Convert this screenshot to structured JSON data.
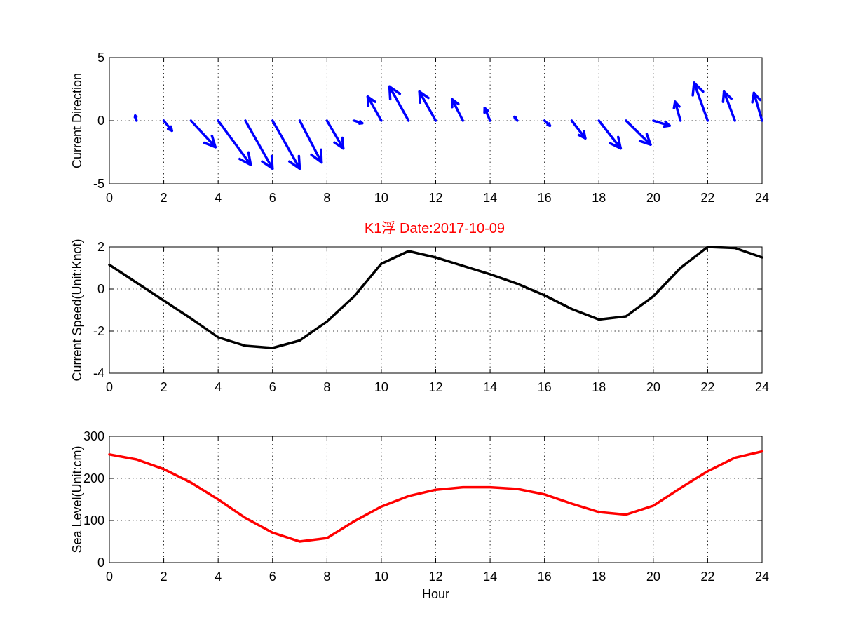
{
  "figure": {
    "title": "K1浮    Date:2017-10-09"
  },
  "chart_data": [
    {
      "type": "quiver",
      "id": "direction",
      "ylabel": "Current Direction",
      "xlabel": "",
      "xlim": [
        0,
        24
      ],
      "ylim": [
        -5,
        5
      ],
      "xticks": [
        0,
        2,
        4,
        6,
        8,
        10,
        12,
        14,
        16,
        18,
        20,
        22,
        24
      ],
      "yticks": [
        -5,
        0,
        5
      ],
      "grid": true,
      "color": "#0000ff",
      "x": [
        1,
        2,
        3,
        4,
        5,
        6,
        7,
        8,
        9,
        10,
        11,
        12,
        13,
        14,
        15,
        16,
        17,
        18,
        19,
        20,
        21,
        22,
        23,
        24
      ],
      "u": [
        -0.05,
        0.3,
        0.9,
        1.2,
        1.0,
        1.0,
        0.8,
        0.6,
        0.3,
        -0.5,
        -0.7,
        -0.6,
        -0.4,
        -0.2,
        -0.1,
        0.2,
        0.5,
        0.8,
        0.9,
        0.6,
        -0.2,
        -0.5,
        -0.4,
        -0.3
      ],
      "v": [
        0.4,
        -0.8,
        -2.1,
        -3.5,
        -3.8,
        -3.8,
        -3.3,
        -2.2,
        -0.2,
        1.9,
        2.7,
        2.3,
        1.7,
        1.0,
        0.3,
        -0.4,
        -1.4,
        -2.2,
        -1.9,
        -0.4,
        1.5,
        3.0,
        2.3,
        2.2
      ]
    },
    {
      "type": "line",
      "id": "speed",
      "ylabel": "Current Speed(Unit:Knot)",
      "xlabel": "",
      "xlim": [
        0,
        24
      ],
      "ylim": [
        -4,
        2
      ],
      "xticks": [
        0,
        2,
        4,
        6,
        8,
        10,
        12,
        14,
        16,
        18,
        20,
        22,
        24
      ],
      "yticks": [
        -4,
        -2,
        0,
        2
      ],
      "grid": true,
      "series": [
        {
          "color": "#000000",
          "x": [
            0,
            1,
            2,
            3,
            4,
            5,
            6,
            7,
            8,
            9,
            10,
            11,
            12,
            13,
            14,
            15,
            16,
            17,
            18,
            19,
            20,
            21,
            22,
            23,
            24
          ],
          "values": [
            1.15,
            0.3,
            -0.55,
            -1.4,
            -2.3,
            -2.7,
            -2.8,
            -2.45,
            -1.55,
            -0.35,
            1.2,
            1.8,
            1.5,
            1.1,
            0.7,
            0.25,
            -0.3,
            -0.95,
            -1.45,
            -1.3,
            -0.35,
            1.0,
            2.0,
            1.95,
            1.5
          ]
        }
      ]
    },
    {
      "type": "line",
      "id": "sealevel",
      "ylabel": "Sea Level(Unit:cm)",
      "xlabel": "Hour",
      "xlim": [
        0,
        24
      ],
      "ylim": [
        0,
        300
      ],
      "xticks": [
        0,
        2,
        4,
        6,
        8,
        10,
        12,
        14,
        16,
        18,
        20,
        22,
        24
      ],
      "yticks": [
        0,
        100,
        200,
        300
      ],
      "grid": true,
      "series": [
        {
          "color": "#ff0000",
          "x": [
            0,
            1,
            2,
            3,
            4,
            5,
            6,
            7,
            8,
            9,
            10,
            11,
            12,
            13,
            14,
            15,
            16,
            17,
            18,
            19,
            20,
            21,
            22,
            23,
            24
          ],
          "values": [
            257,
            245,
            222,
            190,
            150,
            106,
            71,
            50,
            58,
            98,
            133,
            158,
            173,
            179,
            179,
            175,
            162,
            140,
            120,
            114,
            135,
            177,
            217,
            249,
            264
          ]
        }
      ]
    }
  ]
}
